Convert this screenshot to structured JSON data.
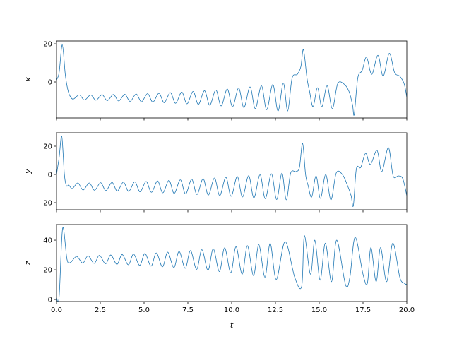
{
  "chart_data": [
    {
      "type": "line",
      "ylabel": "x",
      "xlim": [
        0,
        20
      ],
      "ylim": [
        -18.9,
        21.5
      ],
      "xticks": [
        0,
        2.5,
        5,
        7.5,
        10,
        12.5,
        15,
        17.5,
        20
      ],
      "yticks": [
        0,
        20
      ],
      "series": [
        {
          "color": "#1f77b4",
          "x": [
            0,
            0.15,
            0.33,
            0.5,
            0.62,
            0.75,
            0.95,
            1.3,
            1.6,
            1.95,
            2.25,
            2.6,
            2.9,
            3.25,
            3.55,
            3.9,
            4.2,
            4.55,
            4.85,
            5.2,
            5.5,
            5.85,
            6.15,
            6.5,
            6.8,
            7.15,
            7.45,
            7.8,
            8.1,
            8.45,
            8.75,
            9.1,
            9.4,
            9.75,
            10.05,
            10.4,
            10.7,
            11.05,
            11.35,
            11.7,
            12.0,
            12.35,
            12.65,
            12.95,
            13.2,
            13.45,
            13.75,
            13.95,
            14.1,
            14.3,
            14.45,
            14.65,
            14.9,
            15.15,
            15.45,
            15.75,
            16.05,
            16.4,
            16.7,
            16.9,
            17.0,
            17.2,
            17.45,
            17.7,
            18.0,
            18.35,
            18.65,
            19.0,
            19.3,
            19.6,
            19.85,
            20
          ],
          "values": [
            1,
            5,
            19.5,
            4,
            -3,
            -7,
            -9,
            -6.8,
            -9.5,
            -6.8,
            -9.6,
            -6.7,
            -9.8,
            -6.6,
            -10,
            -6.5,
            -10.2,
            -6.3,
            -10.4,
            -6.1,
            -10.6,
            -5.9,
            -10.9,
            -5.6,
            -11.2,
            -5.3,
            -11.5,
            -5,
            -11.8,
            -4.6,
            -12.2,
            -4.2,
            -12.6,
            -3.7,
            -13,
            -3.2,
            -13.5,
            -2.6,
            -14,
            -2,
            -14.6,
            -1.3,
            -15.3,
            -0.5,
            -15.2,
            2,
            4,
            8,
            17,
            2,
            -5,
            -13,
            -3,
            -13,
            -2,
            -14,
            -1,
            -1,
            -5,
            -12,
            -17,
            2,
            6,
            13,
            4,
            14,
            3,
            15,
            5,
            3,
            -1,
            -8
          ]
        }
      ]
    },
    {
      "type": "line",
      "ylabel": "y",
      "xlim": [
        0,
        20
      ],
      "ylim": [
        -25,
        29.5
      ],
      "xticks": [
        0,
        2.5,
        5,
        7.5,
        10,
        12.5,
        15,
        17.5,
        20
      ],
      "yticks": [
        -20,
        0,
        20
      ],
      "series": [
        {
          "color": "#1f77b4",
          "x": [
            0,
            0.15,
            0.3,
            0.45,
            0.57,
            0.7,
            0.9,
            1.22,
            1.52,
            1.87,
            2.17,
            2.52,
            2.82,
            3.17,
            3.47,
            3.82,
            4.12,
            4.47,
            4.77,
            5.12,
            5.42,
            5.77,
            6.07,
            6.42,
            6.72,
            7.07,
            7.37,
            7.72,
            8.02,
            8.37,
            8.67,
            9.02,
            9.32,
            9.67,
            9.97,
            10.32,
            10.62,
            10.97,
            11.27,
            11.62,
            11.92,
            12.27,
            12.57,
            12.87,
            13.12,
            13.37,
            13.67,
            13.87,
            14.05,
            14.22,
            14.37,
            14.57,
            14.82,
            15.07,
            15.37,
            15.67,
            15.97,
            16.32,
            16.62,
            16.82,
            16.95,
            17.12,
            17.37,
            17.65,
            17.92,
            18.3,
            18.57,
            18.95,
            19.22,
            19.52,
            19.77,
            20
          ],
          "values": [
            0,
            12,
            27,
            0,
            -8,
            -7.5,
            -10,
            -6,
            -11,
            -6,
            -11.2,
            -5.8,
            -11.5,
            -5.6,
            -11.8,
            -5.4,
            -12,
            -5.2,
            -12.3,
            -5,
            -12.6,
            -4.6,
            -13,
            -4.2,
            -13.4,
            -3.8,
            -13.8,
            -3.4,
            -14.2,
            -3,
            -14.6,
            -2.5,
            -15,
            -2,
            -15.5,
            -1.4,
            -16,
            -0.8,
            -16.6,
            -0.2,
            -17.2,
            0.5,
            -17.8,
            1,
            -18,
            1,
            2,
            5,
            22,
            0,
            -8,
            -16,
            -1,
            -17,
            0,
            -18,
            1,
            0,
            -8,
            -15,
            -22,
            4,
            5,
            15,
            7,
            17,
            2,
            19,
            -1,
            -1,
            -3,
            -15
          ]
        }
      ]
    },
    {
      "type": "line",
      "ylabel": "z",
      "xlabel": "t",
      "xlim": [
        0,
        20
      ],
      "ylim": [
        -1.4,
        50.5
      ],
      "xticks": [
        {
          "value": 0,
          "label": "0.0"
        },
        {
          "value": 2.5,
          "label": "2.5"
        },
        {
          "value": 5,
          "label": "5.0"
        },
        {
          "value": 7.5,
          "label": "7.5"
        },
        {
          "value": 10,
          "label": "10.0"
        },
        {
          "value": 12.5,
          "label": "12.5"
        },
        {
          "value": 15,
          "label": "15.0"
        },
        {
          "value": 17.5,
          "label": "17.5"
        },
        {
          "value": 20,
          "label": "20.0"
        }
      ],
      "yticks": [
        0,
        20,
        40
      ],
      "series": [
        {
          "color": "#1f77b4",
          "x": [
            0,
            0.15,
            0.35,
            0.6,
            0.8,
            1.15,
            1.5,
            1.8,
            2.15,
            2.45,
            2.8,
            3.1,
            3.45,
            3.75,
            4.1,
            4.4,
            4.75,
            5.05,
            5.4,
            5.7,
            6.05,
            6.35,
            6.7,
            7.0,
            7.35,
            7.65,
            8.0,
            8.3,
            8.65,
            8.95,
            9.3,
            9.6,
            9.95,
            10.25,
            10.6,
            10.9,
            11.25,
            11.55,
            11.9,
            12.2,
            12.55,
            13.05,
            13.6,
            14.0,
            14.15,
            14.5,
            14.75,
            15.05,
            15.35,
            15.7,
            16.0,
            16.5,
            16.75,
            17.05,
            17.5,
            17.75,
            17.95,
            18.25,
            18.5,
            18.85,
            19.2,
            19.6,
            19.85,
            20
          ],
          "values": [
            1,
            2,
            48,
            27,
            25,
            29,
            24.5,
            29.5,
            24.3,
            29.8,
            24,
            30,
            23.7,
            30.3,
            23.4,
            30.6,
            23,
            31,
            22.5,
            31.4,
            22,
            31.9,
            21.5,
            32.4,
            21,
            33,
            20.3,
            33.6,
            19.6,
            34.2,
            18.8,
            34.9,
            18,
            35.6,
            17,
            36.3,
            16,
            37,
            15,
            37.8,
            13.5,
            39,
            15,
            9,
            43,
            17,
            40,
            13,
            38,
            12,
            40,
            10,
            15,
            42,
            17,
            11,
            35,
            12,
            35,
            12,
            38,
            15,
            11,
            10
          ]
        }
      ]
    }
  ]
}
